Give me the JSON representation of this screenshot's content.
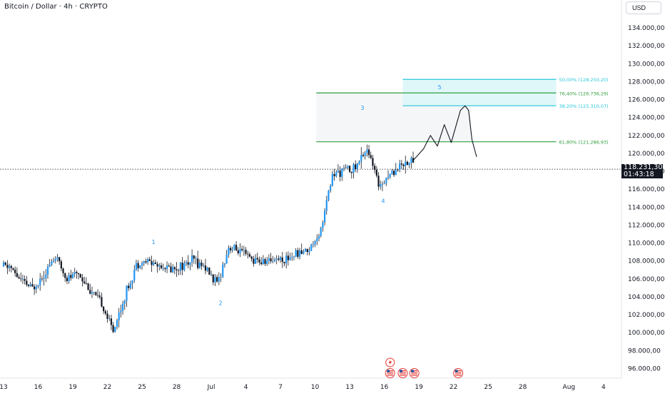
{
  "header": {
    "title": "Bitcoin / Dollar · 4h · CRYPTO"
  },
  "toolbar": {
    "currency_label": "USD"
  },
  "last_price": {
    "price": "118.231,30",
    "countdown": "01:43:18"
  },
  "colors": {
    "candle": "#131722",
    "accent_blue": "#2196f3",
    "fib_green": "#2e9e3e",
    "fib_cyan": "#26c6da",
    "zone_fill": "#e0f7fa",
    "grid_text": "#131722"
  },
  "chart_data": {
    "type": "candlestick",
    "symbol": "Bitcoin / Dollar",
    "interval": "4h",
    "y_axis": {
      "range": [
        95000,
        135000
      ],
      "tick_labels": [
        "134.000,00",
        "132.000,00",
        "130.000,00",
        "128.000,00",
        "126.000,00",
        "124.000,00",
        "122.000,00",
        "120.000,00",
        "118.000,00",
        "116.000,00",
        "114.000,00",
        "112.000,00",
        "110.000,00",
        "108.000,00",
        "106.000,00",
        "104.000,00",
        "102.000,00",
        "100.000,00",
        "98.000,00",
        "96.000,00"
      ],
      "tick_values": [
        134000,
        132000,
        130000,
        128000,
        126000,
        124000,
        122000,
        120000,
        118000,
        116000,
        114000,
        112000,
        110000,
        108000,
        106000,
        104000,
        102000,
        100000,
        98000,
        96000
      ]
    },
    "x_axis": {
      "tick_labels": [
        "13",
        "16",
        "19",
        "22",
        "25",
        "28",
        "Jul",
        "4",
        "7",
        "10",
        "13",
        "16",
        "19",
        "22",
        "25",
        "28",
        "Aug",
        "4"
      ],
      "tick_day_index": [
        0,
        3,
        6,
        9,
        12,
        15,
        18,
        21,
        24,
        27,
        30,
        33,
        36,
        39,
        42,
        45,
        49,
        52
      ],
      "range_day_index": [
        0,
        56
      ]
    },
    "close_path": [
      [
        0.5,
        107400
      ],
      [
        1.5,
        105800
      ],
      [
        2.5,
        104900
      ],
      [
        3.5,
        106600
      ],
      [
        4.5,
        108400
      ],
      [
        5.5,
        106000
      ],
      [
        6.5,
        106700
      ],
      [
        7.5,
        104700
      ],
      [
        8.5,
        103200
      ],
      [
        9.5,
        100200
      ],
      [
        10.5,
        104000
      ],
      [
        11.5,
        107600
      ],
      [
        12.5,
        108000
      ],
      [
        13.5,
        107500
      ],
      [
        14.5,
        107100
      ],
      [
        15.5,
        107500
      ],
      [
        16.5,
        108100
      ],
      [
        17.5,
        107300
      ],
      [
        18.5,
        105400
      ],
      [
        19.5,
        109500
      ],
      [
        20.5,
        109000
      ],
      [
        21.5,
        108200
      ],
      [
        22.5,
        107800
      ],
      [
        23.5,
        108300
      ],
      [
        24.5,
        108200
      ],
      [
        25.5,
        108900
      ],
      [
        26.5,
        109300
      ],
      [
        27.5,
        111500
      ],
      [
        28.5,
        117500
      ],
      [
        29.5,
        118200
      ],
      [
        30.5,
        118400
      ],
      [
        31.5,
        120600
      ],
      [
        32.5,
        116500
      ],
      [
        33.5,
        117700
      ],
      [
        34.5,
        118800
      ],
      [
        35.5,
        119200
      ]
    ],
    "projection_path": [
      [
        35.5,
        119200
      ],
      [
        36.4,
        120500
      ],
      [
        37.0,
        122000
      ],
      [
        37.6,
        120800
      ],
      [
        38.2,
        123200
      ],
      [
        38.8,
        121200
      ],
      [
        39.6,
        124800
      ],
      [
        40.0,
        125300
      ],
      [
        40.3,
        124800
      ],
      [
        40.6,
        121500
      ],
      [
        41.0,
        119600
      ]
    ],
    "wave_labels": [
      {
        "label": "1",
        "day": 13.0,
        "price": 110100
      },
      {
        "label": "2",
        "day": 18.8,
        "price": 103300
      },
      {
        "label": "3",
        "day": 31.1,
        "price": 125100
      },
      {
        "label": "4",
        "day": 32.9,
        "price": 114700
      },
      {
        "label": "5",
        "day": 37.8,
        "price": 127400
      }
    ],
    "fib_levels": [
      {
        "label": "50,00% (128.250,20)",
        "price": 128250.2,
        "color": "cyan"
      },
      {
        "label": "76,40% (126.736,29)",
        "price": 126736.29,
        "color": "green"
      },
      {
        "label": "38,20% (125.310,07)",
        "price": 125310.07,
        "color": "cyan"
      },
      {
        "label": "61,80% (121.286,93)",
        "price": 121286.93,
        "color": "green"
      }
    ],
    "last_price_value": 118231.3,
    "event_icons": [
      {
        "type": "lightning",
        "day": 33.5
      },
      {
        "type": "flag-us",
        "day": 33.5
      },
      {
        "type": "flag-us",
        "day": 34.6
      },
      {
        "type": "flag-us",
        "day": 35.6
      },
      {
        "type": "flag-us",
        "day": 39.4
      }
    ],
    "grid": false,
    "legend": "none"
  }
}
